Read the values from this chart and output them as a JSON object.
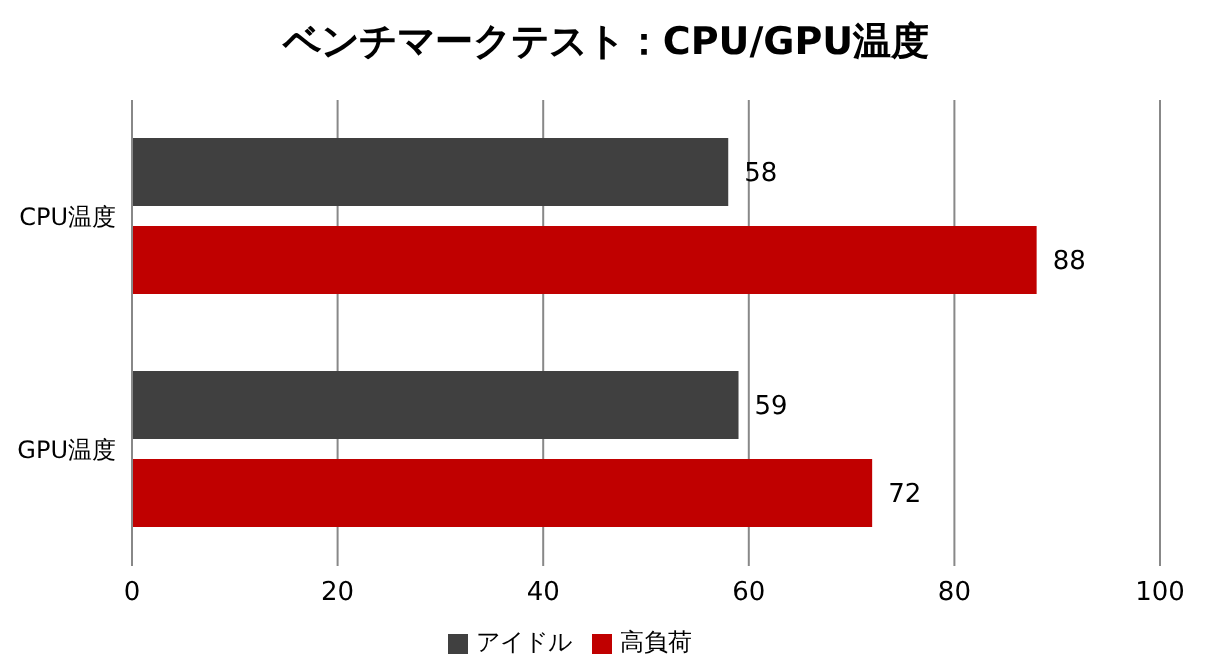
{
  "chart_data": {
    "type": "bar",
    "orientation": "horizontal",
    "title": "ベンチマークテスト：CPU/GPU温度",
    "categories": [
      "CPU温度",
      "GPU温度"
    ],
    "series": [
      {
        "name": "アイドル",
        "color": "#404040",
        "values": [
          58,
          59
        ]
      },
      {
        "name": "高負荷",
        "color": "#c00000",
        "values": [
          88,
          72
        ]
      }
    ],
    "xlim": [
      0,
      100
    ],
    "xticks": [
      0,
      20,
      40,
      60,
      80,
      100
    ],
    "grid": "x",
    "legend": "bottom",
    "data_labels": true
  }
}
